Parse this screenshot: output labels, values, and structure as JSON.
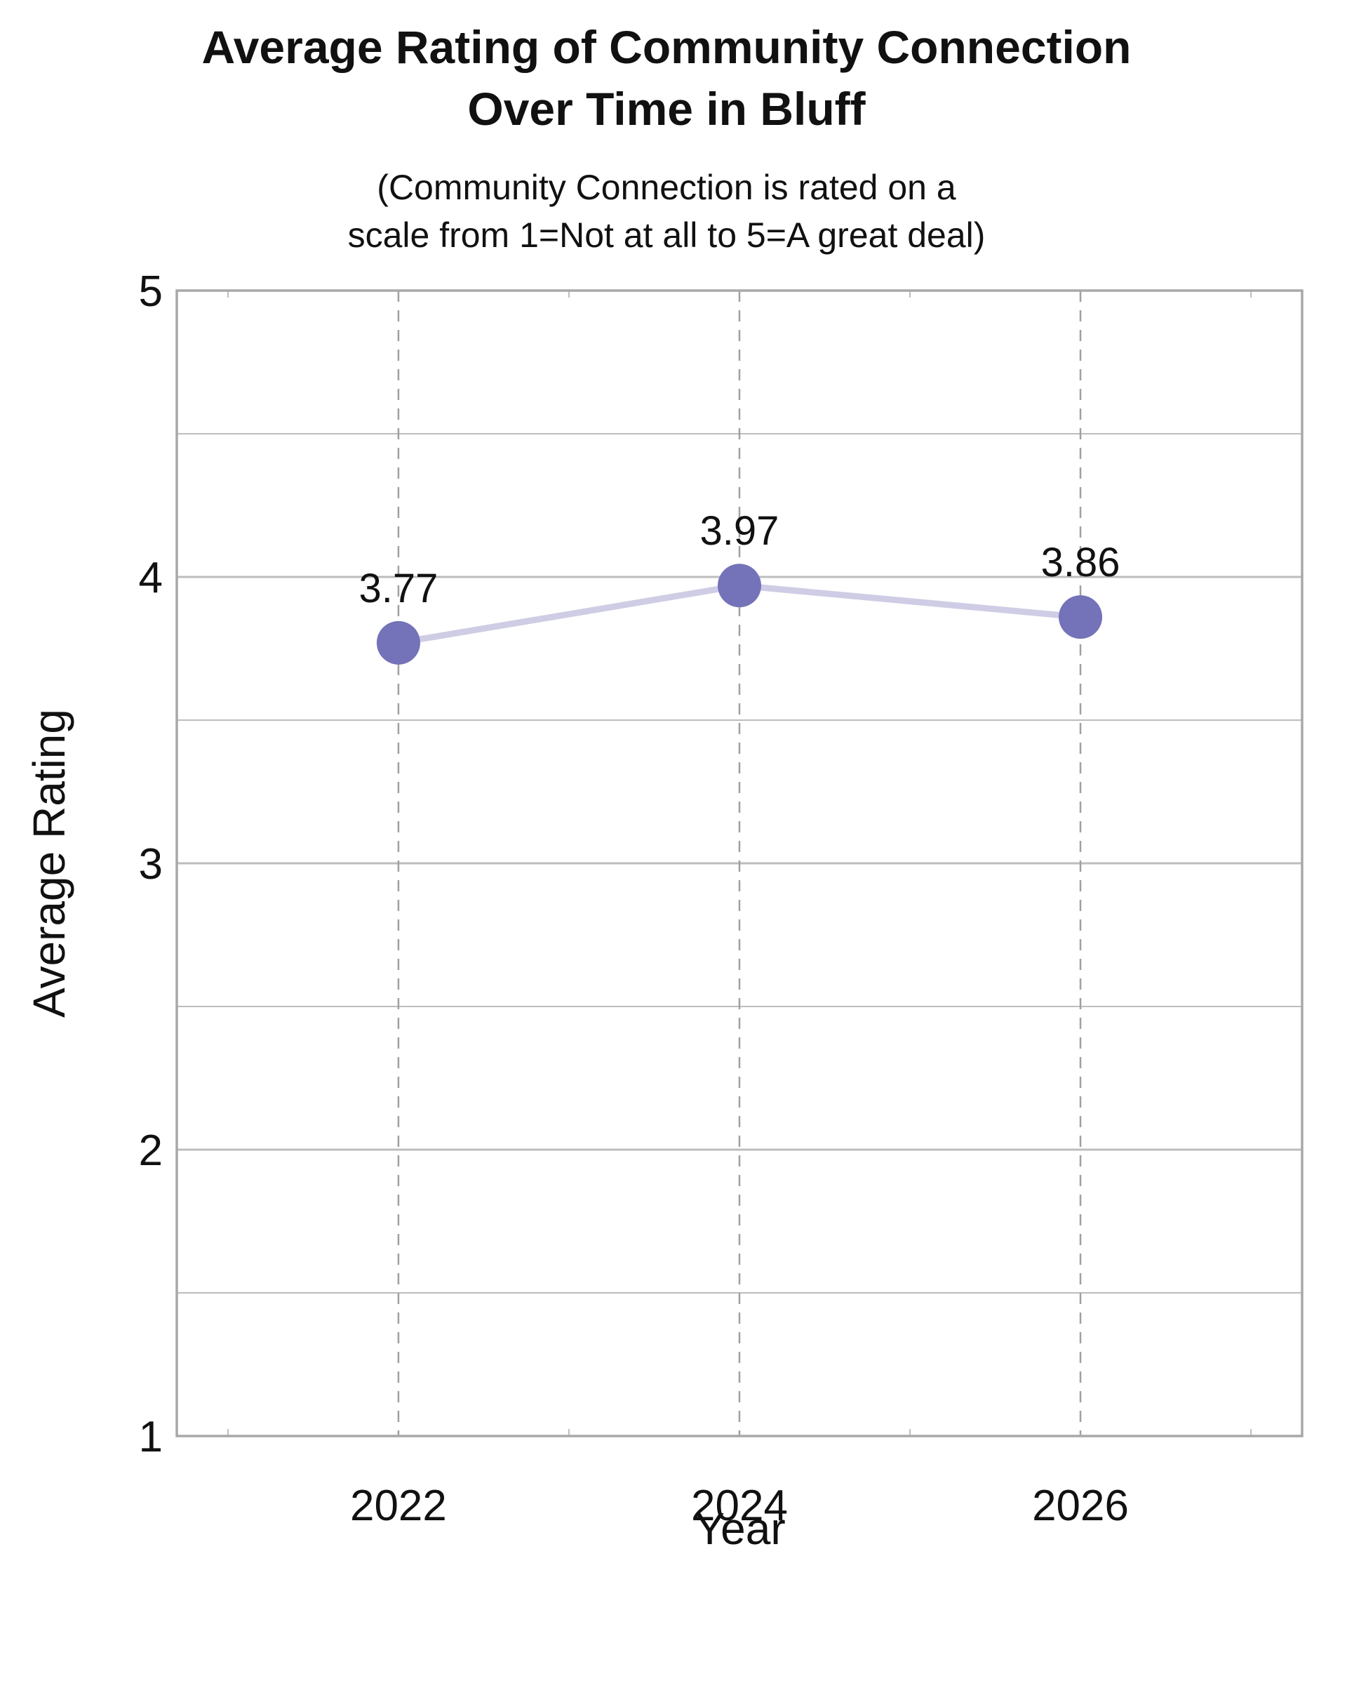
{
  "chart_data": {
    "type": "line",
    "title_lines": [
      "Average Rating of Community Connection",
      "Over Time in Bluff"
    ],
    "subtitle_lines": [
      "(Community Connection is rated on a",
      "scale from 1=Not at all to 5=A great deal)"
    ],
    "xlabel": "Year",
    "ylabel": "Average Rating",
    "x": [
      2022,
      2024,
      2026
    ],
    "x_tick_labels": [
      "2022",
      "2024",
      "2026"
    ],
    "xlim": [
      2020.7,
      2027.3
    ],
    "ylim": [
      1,
      5
    ],
    "y_ticks": [
      1,
      2,
      3,
      4,
      5
    ],
    "y_tick_labels": [
      "1",
      "2",
      "3",
      "4",
      "5"
    ],
    "series": [
      {
        "values": [
          3.77,
          3.97,
          3.86
        ],
        "data_labels": [
          "3.77",
          "3.97",
          "3.86"
        ]
      }
    ],
    "grid": true,
    "colors": {
      "marker": "#7472b8",
      "line": "#cfcde5",
      "grid": "#bdbdbd",
      "axis": "#a8a8a8",
      "vline": "#a0a0a0"
    }
  }
}
